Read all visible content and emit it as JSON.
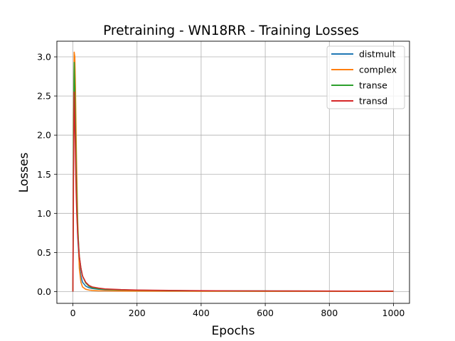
{
  "chart_data": {
    "type": "line",
    "title": "Pretraining - WN18RR - Training Losses",
    "xlabel": "Epochs",
    "ylabel": "Losses",
    "xlim": [
      -50,
      1050
    ],
    "ylim": [
      -0.15,
      3.2
    ],
    "xticks": [
      0,
      200,
      400,
      600,
      800,
      1000
    ],
    "yticks": [
      0.0,
      0.5,
      1.0,
      1.5,
      2.0,
      2.5,
      3.0
    ],
    "xtick_labels": [
      "0",
      "200",
      "400",
      "600",
      "800",
      "1000"
    ],
    "ytick_labels": [
      "0.0",
      "0.5",
      "1.0",
      "1.5",
      "2.0",
      "2.5",
      "3.0"
    ],
    "grid": true,
    "legend_position": "top-right",
    "series": [
      {
        "name": "distmult",
        "color": "#1f77b4",
        "x": [
          0,
          2,
          4,
          6,
          8,
          10,
          12,
          15,
          20,
          25,
          30,
          40,
          50,
          60,
          80,
          100,
          150,
          200,
          300,
          400,
          500,
          600,
          700,
          800,
          900,
          1000
        ],
        "y": [
          0.0,
          2.0,
          2.95,
          2.55,
          2.0,
          1.5,
          1.1,
          0.7,
          0.35,
          0.2,
          0.12,
          0.07,
          0.05,
          0.04,
          0.03,
          0.025,
          0.02,
          0.015,
          0.01,
          0.01,
          0.008,
          0.007,
          0.006,
          0.006,
          0.005,
          0.005
        ]
      },
      {
        "name": "complex",
        "color": "#ff7f0e",
        "x": [
          0,
          2,
          4,
          6,
          8,
          10,
          12,
          15,
          20,
          25,
          30,
          40,
          50,
          60,
          80,
          100,
          150,
          200,
          300,
          400,
          500,
          600,
          700,
          800,
          900,
          1000
        ],
        "y": [
          0.0,
          2.2,
          3.06,
          3.0,
          2.6,
          2.0,
          1.5,
          0.9,
          0.3,
          0.12,
          0.06,
          0.03,
          0.02,
          0.015,
          0.01,
          0.01,
          0.008,
          0.007,
          0.006,
          0.005,
          0.005,
          0.004,
          0.004,
          0.004,
          0.003,
          0.003
        ]
      },
      {
        "name": "transe",
        "color": "#2ca02c",
        "x": [
          0,
          2,
          4,
          6,
          8,
          10,
          12,
          15,
          20,
          25,
          30,
          40,
          50,
          60,
          80,
          100,
          150,
          200,
          300,
          400,
          500,
          600,
          700,
          800,
          900,
          1000
        ],
        "y": [
          0.0,
          2.0,
          2.93,
          2.6,
          2.1,
          1.6,
          1.2,
          0.8,
          0.45,
          0.3,
          0.2,
          0.11,
          0.07,
          0.05,
          0.035,
          0.03,
          0.022,
          0.018,
          0.013,
          0.01,
          0.009,
          0.008,
          0.007,
          0.006,
          0.006,
          0.005
        ]
      },
      {
        "name": "transd",
        "color": "#d62728",
        "x": [
          0,
          2,
          4,
          6,
          8,
          10,
          12,
          15,
          20,
          25,
          30,
          40,
          50,
          60,
          80,
          100,
          150,
          200,
          300,
          400,
          500,
          600,
          700,
          800,
          900,
          1000
        ],
        "y": [
          0.0,
          1.5,
          2.55,
          2.2,
          1.75,
          1.3,
          1.0,
          0.72,
          0.45,
          0.3,
          0.2,
          0.12,
          0.08,
          0.06,
          0.045,
          0.035,
          0.025,
          0.02,
          0.015,
          0.012,
          0.01,
          0.009,
          0.008,
          0.007,
          0.006,
          0.006
        ]
      }
    ]
  }
}
